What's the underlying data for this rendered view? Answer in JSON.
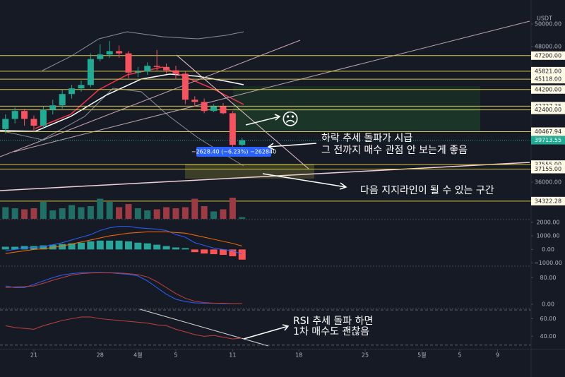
{
  "chart_data": [
    {
      "type": "candlestick",
      "currency": "USDT",
      "x": [
        -3,
        -2,
        -1,
        0,
        1,
        2,
        3,
        4,
        5,
        6,
        7,
        8,
        9,
        10,
        11,
        12,
        13,
        14,
        15,
        16,
        17,
        18,
        19,
        20,
        21,
        22
      ],
      "open": [
        40700,
        41600,
        42300,
        41600,
        41000,
        42400,
        42800,
        43800,
        44300,
        44600,
        46900,
        47300,
        47600,
        47400,
        45700,
        45800,
        46300,
        46200,
        45900,
        45600,
        43300,
        43100,
        42300,
        42700,
        42100,
        39300
      ],
      "high": [
        42000,
        42600,
        42500,
        41900,
        42700,
        43300,
        44200,
        44600,
        45000,
        47400,
        48200,
        48500,
        48100,
        47600,
        46200,
        46600,
        47700,
        46500,
        46300,
        45800,
        43600,
        43400,
        42900,
        43000,
        42300,
        39900
      ],
      "low": [
        40300,
        41200,
        41000,
        40500,
        40800,
        42000,
        42500,
        43400,
        44000,
        44400,
        46700,
        47000,
        47000,
        45200,
        45300,
        45500,
        45900,
        45600,
        45100,
        42900,
        42700,
        42100,
        42200,
        42000,
        39100,
        39200
      ],
      "close": [
        41600,
        42300,
        41600,
        41000,
        42400,
        42800,
        43800,
        44300,
        44600,
        46900,
        47300,
        47600,
        47400,
        45700,
        45800,
        46300,
        46200,
        45900,
        45600,
        43300,
        43100,
        42300,
        42700,
        42100,
        39300,
        39713.55
      ],
      "up_color": "#22ab94",
      "down_color": "#f7525f",
      "xlim": [
        -3.58,
        52.54
      ],
      "xticks": [
        {
          "value": 0,
          "label": "21"
        },
        {
          "value": 7,
          "label": "28"
        },
        {
          "value": 11,
          "label": "4월"
        },
        {
          "value": 15,
          "label": "5"
        },
        {
          "value": 21,
          "label": "11"
        },
        {
          "value": 28,
          "label": "18"
        },
        {
          "value": 35,
          "label": "25"
        },
        {
          "value": 41,
          "label": "5월"
        },
        {
          "value": 45,
          "label": "5"
        },
        {
          "value": 49,
          "label": "9"
        }
      ],
      "ylim": [
        32750,
        52125
      ],
      "yticks": [
        {
          "value": 50000,
          "label": "50000.00"
        },
        {
          "value": 48000,
          "label": "48000.00"
        },
        {
          "value": 36000,
          "label": "36000.00"
        }
      ],
      "level_color": "#d8c84a",
      "levels": [
        {
          "value": 47200,
          "label": "47200.00"
        },
        {
          "value": 45821,
          "label": "45821.00"
        },
        {
          "value": 45118,
          "label": "45118.00"
        },
        {
          "value": 44200,
          "label": "44200.00"
        },
        {
          "value": 42727.35,
          "label": "42727.35"
        },
        {
          "value": 42400,
          "label": "42400.00"
        },
        {
          "value": 40467.94,
          "label": "40467.94"
        },
        {
          "value": 37555,
          "label": "37555.00"
        },
        {
          "value": 37155,
          "label": "37155.00"
        },
        {
          "value": 34322.28,
          "label": "34322.28"
        }
      ],
      "last_price": {
        "value": 39713.55,
        "label": "39713.55"
      },
      "change_label": "−2628.40 (−6.23%) −262840"
    },
    {
      "type": "bar",
      "values": [
        55,
        50,
        45,
        50,
        80,
        40,
        50,
        65,
        55,
        60,
        95,
        80,
        55,
        70,
        50,
        40,
        45,
        55,
        50,
        55,
        95,
        60,
        35,
        45,
        100,
        8
      ],
      "ylim": [
        0,
        100
      ],
      "up_color": "#1f6f66",
      "down_color": "#9e3a43"
    },
    {
      "type": "line",
      "bars": {
        "values": [
          200,
          200,
          250,
          250,
          300,
          350,
          400,
          450,
          500,
          600,
          650,
          650,
          650,
          600,
          500,
          450,
          350,
          250,
          150,
          100,
          -200,
          -300,
          -350,
          -400,
          -500,
          -750
        ],
        "up_color": "#26a69a",
        "down_color": "#ff5252"
      },
      "series": [
        {
          "color": "#2962ff",
          "values": [
            -100,
            0,
            100,
            150,
            200,
            350,
            500,
            700,
            900,
            1100,
            1400,
            1600,
            1700,
            1700,
            1600,
            1550,
            1500,
            1400,
            1100,
            900,
            500,
            300,
            100,
            0,
            -100,
            -350
          ]
        },
        {
          "color": "#ff6d00",
          "values": [
            -300,
            -200,
            -100,
            0,
            50,
            150,
            250,
            400,
            550,
            700,
            850,
            1000,
            1100,
            1200,
            1250,
            1300,
            1300,
            1300,
            1250,
            1200,
            1050,
            900,
            750,
            600,
            450,
            250
          ]
        }
      ],
      "ylim": [
        -1180,
        2100
      ],
      "yticks": [
        {
          "value": 2000,
          "label": "2000.00"
        },
        {
          "value": 1000,
          "label": "1000.00"
        },
        {
          "value": 0,
          "label": "0.00"
        },
        {
          "value": -1000,
          "label": "−1000.00"
        }
      ]
    },
    {
      "type": "line",
      "series": [
        {
          "color": "#2962ff",
          "values": [
            55,
            50,
            50,
            60,
            70,
            80,
            88,
            92,
            95,
            95,
            96,
            95,
            92,
            90,
            85,
            70,
            50,
            30,
            15,
            8,
            4,
            3,
            3,
            2,
            2,
            2
          ]
        },
        {
          "color": "#c2413b",
          "values": [
            50,
            52,
            53,
            55,
            63,
            72,
            80,
            88,
            92,
            94,
            95,
            95,
            94,
            92,
            89,
            82,
            68,
            50,
            32,
            18,
            9,
            5,
            3,
            3,
            2,
            2
          ]
        }
      ],
      "ylim": [
        -10.8,
        112.4
      ],
      "yticks": [
        {
          "value": 80,
          "label": "80.00"
        },
        {
          "value": 0,
          "label": "0.00"
        }
      ]
    },
    {
      "type": "line",
      "series": [
        {
          "color": "#c2413b",
          "values": [
            52,
            50,
            49,
            48,
            52,
            55,
            58,
            60,
            62,
            62,
            60,
            59,
            58,
            57,
            56,
            55,
            53,
            52,
            48,
            45,
            42,
            40,
            41,
            39,
            37,
            38
          ]
        }
      ],
      "hlines": [
        70,
        30
      ],
      "ylim": [
        25,
        70.8
      ],
      "yticks": [
        {
          "value": 60,
          "label": "60.00"
        },
        {
          "value": 40,
          "label": "40.00"
        }
      ]
    }
  ],
  "annotations": {
    "icon": "☹",
    "note_1_line_1": "하락 추세 돌파가 시급",
    "note_1_line_2": "그 전까지 매수 관점 안 보는게 좋음",
    "note_2": "다음 지지라인이 될 수 있는 구간",
    "note_3_line_1": "RSI 추세 돌파 하면",
    "note_3_line_2": "1차 매수도 괜찮음"
  }
}
